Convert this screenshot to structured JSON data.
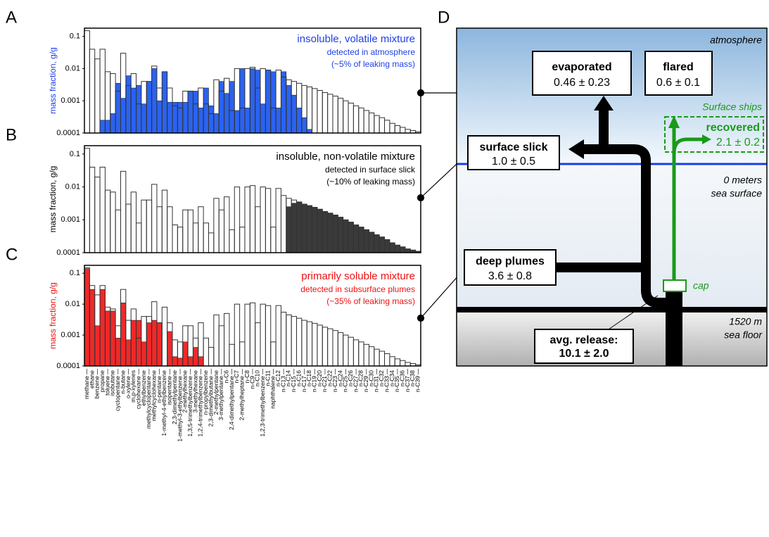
{
  "chart_data": {
    "type": "bar",
    "log_scale": true,
    "ylim": [
      0.0001,
      0.18
    ],
    "yticks": [
      0.0001,
      0.001,
      0.01,
      0.1
    ],
    "categories": [
      "methane",
      "ethane",
      "benzene",
      "propane",
      "toluene",
      "isobutane",
      "cyclopentane",
      "n-butane",
      "o-xylene",
      "m,p-xylenes",
      "cyclohexane",
      "ethylbenzene",
      "methylcyclopentane",
      "methylcyclohexane",
      "n-pentane",
      "1-methyl-4-ethylbenzene",
      "isopentane",
      "2,3-dimethylpentane",
      "1-methyl-3-ethylbenzene",
      "2-methylhexane",
      "1,3,5-trimethylbenzene",
      "3-methylhexane",
      "1,2,4-trimethylbenzene",
      "n-propylbenzene",
      "2,3-dimethylbutane",
      "2-methylpentane",
      "3-methylpentane",
      "n-C6",
      "2,4-dimethylpentane",
      "n-C7",
      "2-methylheptane",
      "n-C8",
      "n-C9",
      "n-C10",
      "1,2,3-trimethylbenzene",
      "n-C11",
      "naphthalene",
      "n-C12",
      "n-C13",
      "n-C14",
      "n-C15",
      "n-C16",
      "n-C17",
      "n-C18",
      "n-C19",
      "n-C20",
      "n-C21",
      "n-C22",
      "n-C23",
      "n-C24",
      "n-C25",
      "n-C26",
      "n-C27",
      "n-C28",
      "n-C29",
      "n-C30",
      "n-C31",
      "n-C32",
      "n-C33",
      "n-C34",
      "n-C35",
      "n-C36",
      "n-C37",
      "n-C38",
      "n-C39"
    ],
    "outline": {
      "color": "#333333",
      "values": [
        0.15,
        0.04,
        0.02,
        0.04,
        0.008,
        0.007,
        0.002,
        0.03,
        0.003,
        0.007,
        0.0008,
        0.004,
        0.004,
        0.012,
        0.0025,
        0.008,
        0.0025,
        0.0007,
        0.0006,
        0.002,
        0.002,
        0.0008,
        0.0025,
        0.0008,
        0.0004,
        0.0045,
        0.002,
        0.005,
        0.0005,
        0.01,
        0.0006,
        0.01,
        0.011,
        0.0025,
        0.01,
        0.009,
        0.0006,
        0.009,
        0.0055,
        0.0045,
        0.004,
        0.0035,
        0.003,
        0.0027,
        0.0024,
        0.0021,
        0.0018,
        0.0016,
        0.0014,
        0.0012,
        0.001,
        0.00085,
        0.0007,
        0.0006,
        0.0005,
        0.00042,
        0.00035,
        0.0003,
        0.00025,
        0.0002,
        0.00017,
        0.00015,
        0.00013,
        0.00012,
        0.00011
      ]
    },
    "panels": [
      {
        "label": "A",
        "ylabel": "mass fraction, g/g",
        "text_color": "#1f3fe6",
        "color": "#2b63f0",
        "annotation": [
          "insoluble, volatile mixture",
          "detected in atmosphere",
          "(~5% of leaking mass)"
        ],
        "values": [
          null,
          null,
          null,
          0.00025,
          0.00025,
          0.0004,
          0.0035,
          0.0012,
          0.006,
          0.0025,
          0.003,
          0.0008,
          0.004,
          0.01,
          0.001,
          0.008,
          0.0009,
          0.0009,
          0.0009,
          0.0009,
          0.002,
          0.002,
          0.0006,
          0.0025,
          0.0007,
          0.0004,
          0.004,
          0.0017,
          0.004,
          0.0005,
          0.01,
          0.0006,
          0.01,
          0.009,
          0.0008,
          0.009,
          0.008,
          0.0006,
          0.008,
          0.003,
          0.0015,
          0.0006,
          0.0003,
          0.00013,
          null,
          null,
          null,
          null,
          null,
          null,
          null,
          null,
          null,
          null,
          null,
          null,
          null,
          null,
          null,
          null,
          null,
          null,
          null,
          null,
          null
        ]
      },
      {
        "label": "B",
        "ylabel": "mass fraction, g/g",
        "text_color": "#000000",
        "color": "#3a3a3a",
        "annotation": [
          "insoluble, non-volatile mixture",
          "detected in surface slick",
          "(~10% of leaking mass)"
        ],
        "values": [
          null,
          null,
          null,
          null,
          null,
          null,
          null,
          null,
          null,
          null,
          null,
          null,
          null,
          null,
          null,
          null,
          null,
          null,
          null,
          null,
          null,
          null,
          null,
          null,
          null,
          null,
          null,
          null,
          null,
          null,
          null,
          null,
          null,
          null,
          null,
          null,
          null,
          null,
          null,
          0.0025,
          0.0032,
          0.0034,
          0.003,
          0.0027,
          0.0024,
          0.0021,
          0.0018,
          0.0016,
          0.0014,
          0.0012,
          0.001,
          0.00085,
          0.0007,
          0.0006,
          0.0005,
          0.00042,
          0.00035,
          0.0003,
          0.00025,
          0.0002,
          0.00017,
          0.00015,
          0.00013,
          0.00012,
          0.00011
        ]
      },
      {
        "label": "C",
        "ylabel": "mass fraction, g/g",
        "text_color": "#ee1111",
        "color": "#f02828",
        "annotation": [
          "primarily soluble mixture",
          "detected in subsurface plumes",
          "(~35% of leaking mass)"
        ],
        "values": [
          0.14,
          0.03,
          0.002,
          0.03,
          0.006,
          0.006,
          0.0008,
          0.011,
          0.0007,
          0.003,
          0.003,
          0.0006,
          0.0025,
          0.003,
          0.0025,
          null,
          0.0013,
          0.0002,
          0.00018,
          0.0006,
          0.0002,
          0.0004,
          0.0002,
          null,
          null,
          null,
          null,
          null,
          null,
          null,
          null,
          null,
          null,
          null,
          null,
          null,
          null,
          null,
          null,
          null,
          null,
          null,
          null,
          null,
          null,
          null,
          null,
          null,
          null,
          null,
          null,
          null,
          null,
          null,
          null,
          null,
          null,
          null,
          null,
          null,
          null,
          null,
          null,
          null,
          null
        ]
      }
    ]
  },
  "diagram": {
    "label": "D",
    "atmosphere": "atmosphere",
    "evaporated": {
      "title": "evaporated",
      "value": "0.46 ± 0.23"
    },
    "flared": {
      "title": "flared",
      "value": "0.6 ± 0.1"
    },
    "ships": "Surface ships",
    "recovered": {
      "title": "recovered",
      "value": "2.1 ± 0.2"
    },
    "slick": {
      "title": "surface slick",
      "value": "1.0 ± 0.5"
    },
    "surface": [
      "0 meters",
      "sea surface"
    ],
    "plumes": {
      "title": "deep plumes",
      "value": "3.6 ± 0.8"
    },
    "cap": "cap",
    "floor": [
      "1520 m",
      "sea floor"
    ],
    "release": {
      "title": "avg. release:",
      "value": "10.1 ± 2.0"
    }
  }
}
